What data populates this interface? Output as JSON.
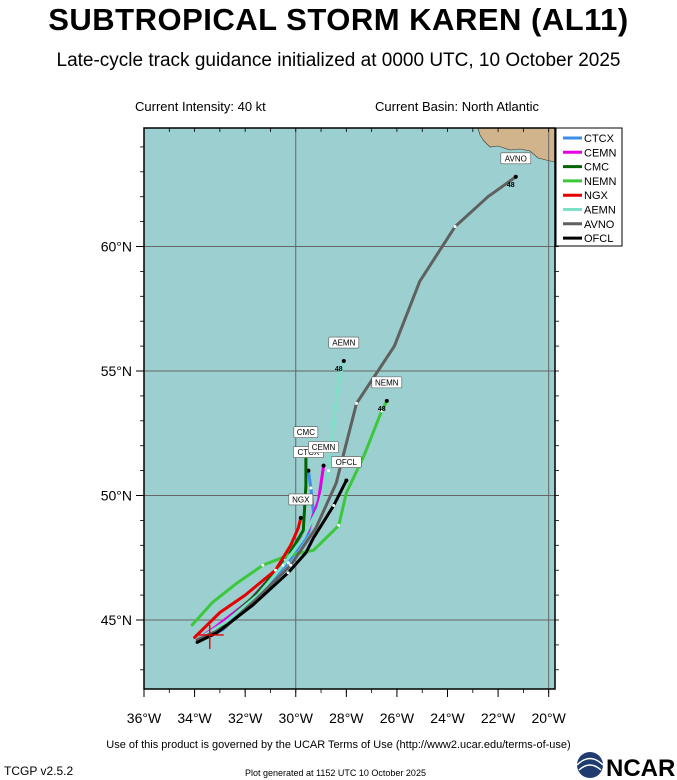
{
  "title": "SUBTROPICAL STORM KAREN (AL11)",
  "subtitle": "Late-cycle track guidance initialized at 0000 UTC, 10 October 2025",
  "info": {
    "intensity": "Current Intensity: 40 kt",
    "basin": "Current Basin: North Atlantic"
  },
  "axes": {
    "lon_ticks": [
      "36°W",
      "34°W",
      "32°W",
      "30°W",
      "28°W",
      "26°W",
      "24°W",
      "22°W",
      "20°W"
    ],
    "lat_ticks": [
      "45°N",
      "50°N",
      "55°N",
      "60°N"
    ]
  },
  "colors": {
    "ocean": "#9ccfcf",
    "land": "#d2b48c"
  },
  "legend": [
    {
      "name": "CTCX",
      "color": "#3d8ee6"
    },
    {
      "name": "CEMN",
      "color": "#e600e6"
    },
    {
      "name": "CMC",
      "color": "#006400"
    },
    {
      "name": "NEMN",
      "color": "#3cc83c"
    },
    {
      "name": "NGX",
      "color": "#e60000"
    },
    {
      "name": "AEMN",
      "color": "#7fe0c8"
    },
    {
      "name": "AVNO",
      "color": "#606060"
    },
    {
      "name": "OFCL",
      "color": "#000000"
    }
  ],
  "tracks": [
    {
      "name": "CTCX",
      "color": "#3d8ee6",
      "label": "CTCX",
      "hour_label": "",
      "points": [
        [
          -33.9,
          44.2
        ],
        [
          -32.9,
          44.6
        ],
        [
          -31.8,
          45.7
        ],
        [
          -30.3,
          47.3
        ],
        [
          -29.5,
          48.5
        ],
        [
          -29.3,
          49.3
        ],
        [
          -29.4,
          50.3
        ],
        [
          -29.5,
          51.0
        ]
      ]
    },
    {
      "name": "CEMN",
      "color": "#e600e6",
      "label": "CEMN",
      "hour_label": "",
      "points": [
        [
          -33.9,
          44.2
        ],
        [
          -33.2,
          44.7
        ],
        [
          -31.8,
          45.8
        ],
        [
          -30.4,
          47.4
        ],
        [
          -29.5,
          48.6
        ],
        [
          -29.1,
          49.8
        ],
        [
          -28.9,
          51.2
        ]
      ]
    },
    {
      "name": "CMC",
      "color": "#006400",
      "label": "CMC",
      "hour_label": "",
      "points": [
        [
          -33.9,
          44.2
        ],
        [
          -32.9,
          44.8
        ],
        [
          -31.6,
          46.0
        ],
        [
          -30.4,
          47.4
        ],
        [
          -29.7,
          48.6
        ],
        [
          -29.6,
          50.4
        ],
        [
          -29.6,
          51.8
        ]
      ]
    },
    {
      "name": "NEMN",
      "color": "#3cc83c",
      "label": "NEMN",
      "hour_label": "48",
      "points": [
        [
          -34.1,
          44.8
        ],
        [
          -33.3,
          45.7
        ],
        [
          -32.3,
          46.5
        ],
        [
          -31.3,
          47.2
        ],
        [
          -30.3,
          47.6
        ],
        [
          -29.3,
          47.8
        ],
        [
          -28.3,
          48.8
        ],
        [
          -28.0,
          50.1
        ],
        [
          -27.3,
          51.6
        ],
        [
          -26.6,
          53.4
        ],
        [
          -26.4,
          53.8
        ]
      ]
    },
    {
      "name": "NGX",
      "color": "#e60000",
      "label": "NGX",
      "hour_label": "",
      "points": [
        [
          -34.0,
          44.3
        ],
        [
          -33.0,
          45.3
        ],
        [
          -32.0,
          46.0
        ],
        [
          -30.8,
          47.0
        ],
        [
          -30.2,
          48.0
        ],
        [
          -29.9,
          48.7
        ],
        [
          -29.8,
          49.1
        ]
      ]
    },
    {
      "name": "AEMN",
      "color": "#7fe0c8",
      "label": "AEMN",
      "hour_label": "48",
      "points": [
        [
          -33.9,
          44.2
        ],
        [
          -32.8,
          44.9
        ],
        [
          -31.5,
          46.0
        ],
        [
          -30.5,
          47.2
        ],
        [
          -29.7,
          48.3
        ],
        [
          -29.1,
          49.5
        ],
        [
          -28.7,
          51.0
        ],
        [
          -28.5,
          53.0
        ],
        [
          -28.3,
          54.6
        ],
        [
          -28.1,
          55.4
        ]
      ]
    },
    {
      "name": "AVNO",
      "color": "#606060",
      "label": "AVNO",
      "hour_label": "48",
      "points": [
        [
          -33.9,
          44.2
        ],
        [
          -32.8,
          44.7
        ],
        [
          -31.5,
          45.9
        ],
        [
          -30.2,
          47.2
        ],
        [
          -29.2,
          48.7
        ],
        [
          -28.4,
          50.5
        ],
        [
          -27.6,
          53.7
        ],
        [
          -26.1,
          56.0
        ],
        [
          -25.1,
          58.6
        ],
        [
          -23.7,
          60.8
        ],
        [
          -22.4,
          62.0
        ],
        [
          -21.3,
          62.8
        ]
      ]
    },
    {
      "name": "OFCL",
      "color": "#000000",
      "label": "OFCL",
      "hour_label": "",
      "points": [
        [
          -33.9,
          44.1
        ],
        [
          -33.1,
          44.5
        ],
        [
          -31.7,
          45.6
        ],
        [
          -30.3,
          46.9
        ],
        [
          -29.6,
          47.7
        ],
        [
          -29.3,
          48.3
        ],
        [
          -28.5,
          49.6
        ],
        [
          -28.0,
          50.6
        ]
      ]
    }
  ],
  "storm_center": [
    -33.4,
    44.4
  ],
  "footer": {
    "terms": "Use of this product is governed by the UCAR Terms of Use (http://www2.ucar.edu/terms-of-use)",
    "version": "TCGP v2.5.2",
    "generated": "Plot generated at 1152 UTC   10 October 2025",
    "logo": "NCAR"
  }
}
